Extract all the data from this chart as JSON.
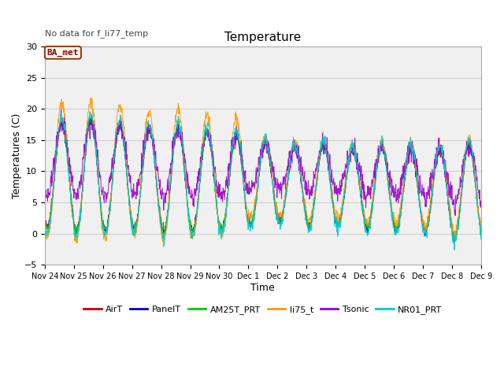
{
  "title": "Temperature",
  "xlabel": "Time",
  "ylabel": "Temperatures (C)",
  "note": "No data for f_li77_temp",
  "legend_label": "BA_met",
  "ylim": [
    -5,
    30
  ],
  "yticks": [
    -5,
    0,
    5,
    10,
    15,
    20,
    25,
    30
  ],
  "series_names": [
    "AirT",
    "PanelT",
    "AM25T_PRT",
    "li75_t",
    "Tsonic",
    "NR01_PRT"
  ],
  "series_colors": [
    "#cc0000",
    "#0000cc",
    "#00cc00",
    "#ff9900",
    "#9900cc",
    "#00cccc"
  ],
  "xticklabels": [
    "Nov 24",
    "Nov 25",
    "Nov 26",
    "Nov 27",
    "Nov 28",
    "Nov 29",
    "Nov 30",
    "Dec 1",
    "Dec 2",
    "Dec 3",
    "Dec 4",
    "Dec 5",
    "Dec 6",
    "Dec 7",
    "Dec 8",
    "Dec 9"
  ],
  "n_days": 16,
  "pts_per_day": 96,
  "figsize": [
    6.4,
    4.8
  ],
  "dpi": 100,
  "plot_bg_color": "#f0f0f0",
  "fig_bg_color": "#ffffff",
  "grid_color": "#d0d0d0",
  "note_color": "#444444",
  "ba_met_fg": "#8B0000",
  "ba_met_bg": "#fffff0",
  "ba_met_edge": "#8B4513"
}
